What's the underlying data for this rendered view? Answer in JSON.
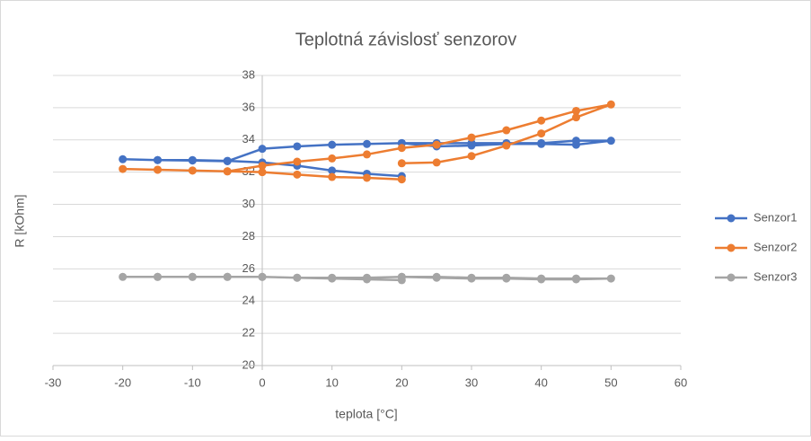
{
  "chart_data": {
    "type": "scatter-line",
    "title": "Teplotná závislosť senzorov",
    "xlabel": "teplota [°C]",
    "ylabel": "R [kOhm]",
    "x": [
      20,
      15,
      10,
      5,
      0,
      -5,
      -10,
      -15,
      -20,
      -15,
      -10,
      -5,
      0,
      5,
      10,
      15,
      20,
      25,
      30,
      35,
      40,
      45,
      50,
      45,
      40,
      35,
      30,
      25,
      20
    ],
    "series": [
      {
        "name": "Senzor1",
        "color": "#4472c4",
        "values": [
          31.75,
          31.9,
          32.1,
          32.4,
          32.6,
          32.7,
          32.75,
          32.75,
          32.8,
          32.75,
          32.72,
          32.68,
          33.45,
          33.6,
          33.7,
          33.75,
          33.8,
          33.8,
          33.8,
          33.8,
          33.8,
          33.95,
          33.95,
          33.7,
          33.75,
          33.75,
          33.65,
          33.6,
          33.8
        ]
      },
      {
        "name": "Senzor2",
        "color": "#ed7d31",
        "values": [
          31.55,
          31.65,
          31.7,
          31.85,
          32.0,
          32.05,
          32.1,
          32.15,
          32.2,
          32.15,
          32.1,
          32.05,
          32.4,
          32.65,
          32.85,
          33.1,
          33.5,
          33.7,
          34.15,
          34.6,
          35.2,
          35.8,
          36.2,
          35.4,
          34.4,
          33.65,
          33.0,
          32.6,
          32.55
        ]
      },
      {
        "name": "Senzor3",
        "color": "#a5a5a5",
        "values": [
          25.3,
          25.35,
          25.4,
          25.45,
          25.5,
          25.5,
          25.5,
          25.5,
          25.5,
          25.5,
          25.5,
          25.5,
          25.5,
          25.45,
          25.45,
          25.45,
          25.5,
          25.5,
          25.45,
          25.45,
          25.4,
          25.4,
          25.4,
          25.35,
          25.35,
          25.4,
          25.4,
          25.45,
          25.5
        ]
      }
    ],
    "xlim": [
      -30,
      60
    ],
    "xticks": [
      -30,
      -20,
      -10,
      0,
      10,
      20,
      30,
      40,
      50,
      60
    ],
    "ylim": [
      20,
      38
    ],
    "yticks": [
      20,
      22,
      24,
      26,
      28,
      30,
      32,
      34,
      36,
      38
    ],
    "grid": true,
    "legend": "right"
  }
}
